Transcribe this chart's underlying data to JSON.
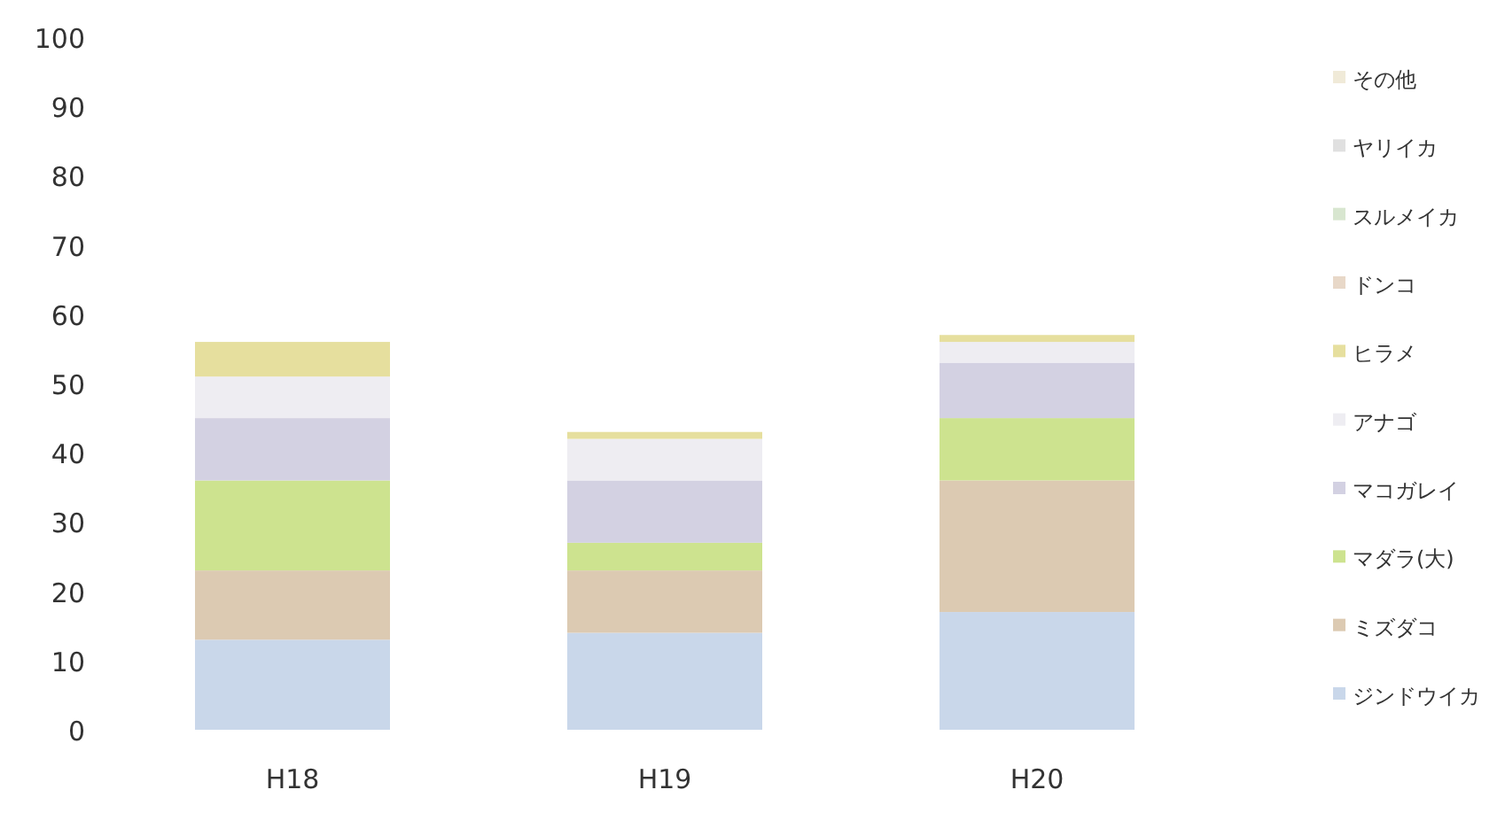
{
  "chart_data": {
    "type": "bar",
    "stacked": true,
    "categories": [
      "H18",
      "H19",
      "H20"
    ],
    "series": [
      {
        "name": "ジンドウイカ",
        "color": "#c9d7ea",
        "values": [
          13,
          14,
          17
        ]
      },
      {
        "name": "ミズダコ",
        "color": "#dccab2",
        "values": [
          10,
          9,
          19
        ]
      },
      {
        "name": "マダラ(大)",
        "color": "#cde38f",
        "values": [
          13,
          4,
          9
        ]
      },
      {
        "name": "マコガレイ",
        "color": "#d3d1e2",
        "values": [
          9,
          9,
          8
        ]
      },
      {
        "name": "アナゴ",
        "color": "#eeedf2",
        "values": [
          6,
          6,
          3
        ]
      },
      {
        "name": "ヒラメ",
        "color": "#e6df9e",
        "values": [
          5,
          1,
          1
        ]
      },
      {
        "name": "ドンコ",
        "color": "#e8d8c8",
        "values": [
          0,
          0,
          0
        ]
      },
      {
        "name": "スルメイカ",
        "color": "#d8e6d0",
        "values": [
          0,
          0,
          0
        ]
      },
      {
        "name": "ヤリイカ",
        "color": "#e0e0e0",
        "values": [
          0,
          0,
          0
        ]
      },
      {
        "name": "その他",
        "color": "#f0ead8",
        "values": [
          0,
          0,
          0
        ]
      }
    ],
    "ylim": [
      0,
      100
    ],
    "yticks": [
      0,
      10,
      20,
      30,
      40,
      50,
      60,
      70,
      80,
      90,
      100
    ],
    "grid": false,
    "legend": "right"
  }
}
